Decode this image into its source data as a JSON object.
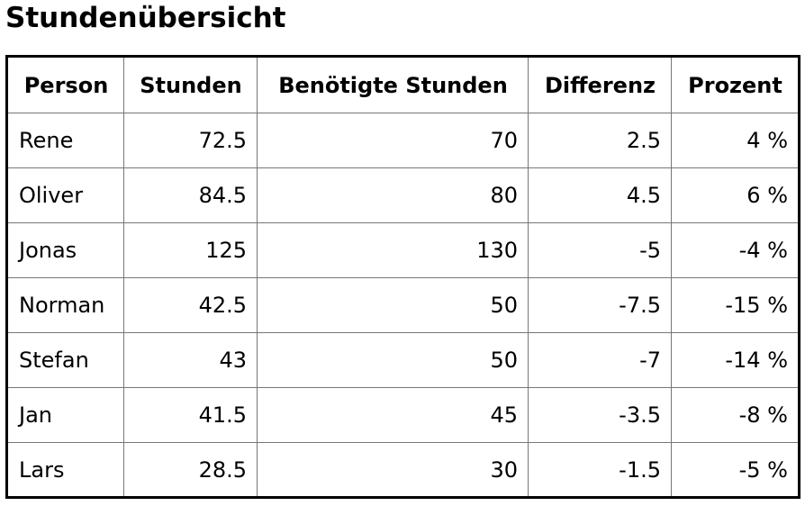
{
  "page": {
    "title": "Stundenübersicht"
  },
  "table": {
    "headers": [
      "Person",
      "Stunden",
      "Benötigte Stunden",
      "Differenz",
      "Prozent"
    ],
    "rows": [
      [
        "Rene",
        "72.5",
        "70",
        "2.5",
        "4 %"
      ],
      [
        "Oliver",
        "84.5",
        "80",
        "4.5",
        "6 %"
      ],
      [
        "Jonas",
        "125",
        "130",
        "-5",
        "-4 %"
      ],
      [
        "Norman",
        "42.5",
        "50",
        "-7.5",
        "-15 %"
      ],
      [
        "Stefan",
        "43",
        "50",
        "-7",
        "-14 %"
      ],
      [
        "Jan",
        "41.5",
        "45",
        "-3.5",
        "-8 %"
      ],
      [
        "Lars",
        "28.5",
        "30",
        "-1.5",
        "-5 %"
      ]
    ]
  }
}
